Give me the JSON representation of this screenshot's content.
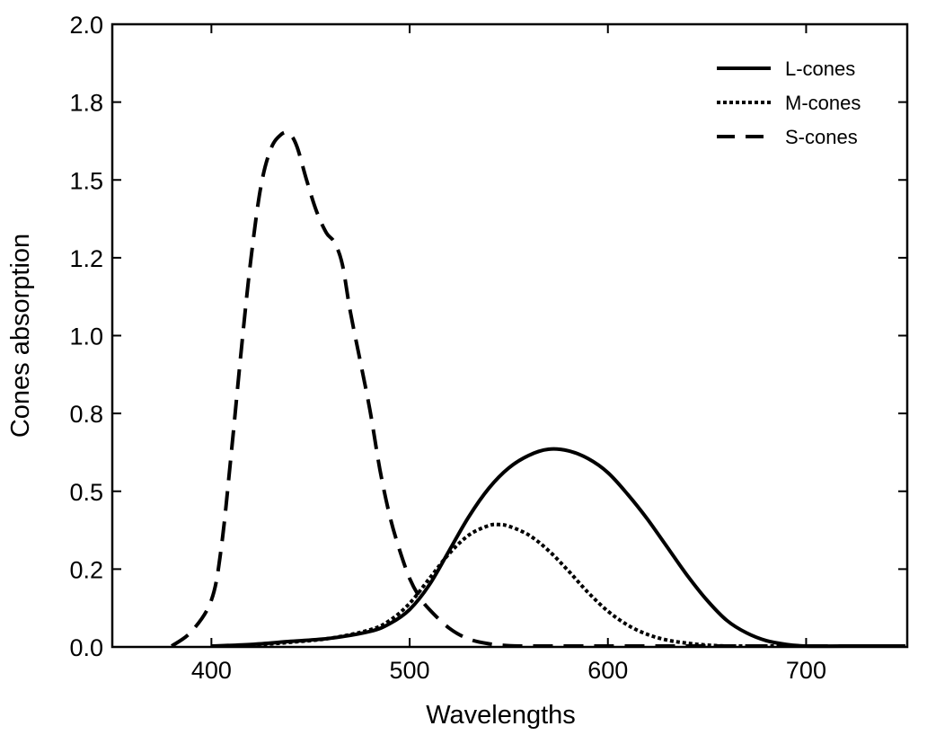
{
  "chart_data": {
    "type": "line",
    "title": "",
    "xlabel": "Wavelengths",
    "ylabel": "Cones absorption",
    "xlim": [
      350,
      751
    ],
    "ylim": [
      0,
      2.0
    ],
    "grid": false,
    "legend_position": "top-right",
    "x_ticks": [
      {
        "value": 400,
        "label": "400"
      },
      {
        "value": 500,
        "label": "500"
      },
      {
        "value": 600,
        "label": "600"
      },
      {
        "value": 700,
        "label": "700"
      }
    ],
    "y_ticks": [
      {
        "value": 0.0,
        "label": "0.0"
      },
      {
        "value": 0.25,
        "label": "0.2"
      },
      {
        "value": 0.5,
        "label": "0.5"
      },
      {
        "value": 0.75,
        "label": "0.8"
      },
      {
        "value": 1.0,
        "label": "1.0"
      },
      {
        "value": 1.25,
        "label": "1.2"
      },
      {
        "value": 1.5,
        "label": "1.5"
      },
      {
        "value": 1.75,
        "label": "1.8"
      },
      {
        "value": 2.0,
        "label": "2.0"
      }
    ],
    "series": [
      {
        "name": "L-cones",
        "style": "solid",
        "color": "#000000",
        "x": [
          400,
          420,
          440,
          460,
          480,
          490,
          500,
          510,
          520,
          530,
          540,
          550,
          560,
          570,
          580,
          590,
          600,
          610,
          620,
          630,
          640,
          650,
          660,
          670,
          680,
          690,
          700,
          720,
          750
        ],
        "y": [
          0.0,
          0.008,
          0.018,
          0.028,
          0.05,
          0.075,
          0.12,
          0.2,
          0.31,
          0.42,
          0.51,
          0.575,
          0.615,
          0.635,
          0.63,
          0.605,
          0.56,
          0.49,
          0.41,
          0.32,
          0.23,
          0.15,
          0.085,
          0.045,
          0.02,
          0.008,
          0.003,
          0.0,
          0.0
        ]
      },
      {
        "name": "M-cones",
        "style": "dotted",
        "color": "#000000",
        "x": [
          420,
          440,
          460,
          480,
          490,
          500,
          510,
          520,
          530,
          540,
          545,
          550,
          560,
          570,
          580,
          590,
          600,
          610,
          620,
          630,
          640,
          650,
          660,
          680,
          700
        ],
        "y": [
          0.005,
          0.015,
          0.028,
          0.055,
          0.085,
          0.14,
          0.22,
          0.3,
          0.36,
          0.39,
          0.393,
          0.388,
          0.36,
          0.31,
          0.245,
          0.175,
          0.115,
          0.07,
          0.04,
          0.022,
          0.012,
          0.006,
          0.003,
          0.001,
          0.0
        ]
      },
      {
        "name": "S-cones",
        "style": "dashed",
        "color": "#000000",
        "x": [
          380,
          390,
          400,
          405,
          410,
          415,
          420,
          425,
          430,
          435,
          439,
          443,
          448,
          453,
          458,
          462,
          466,
          470,
          475,
          480,
          485,
          490,
          495,
          500,
          505,
          510,
          520,
          530,
          540,
          550,
          560,
          580,
          620,
          700,
          750
        ],
        "y": [
          0.0,
          0.05,
          0.15,
          0.32,
          0.62,
          0.95,
          1.25,
          1.48,
          1.6,
          1.645,
          1.65,
          1.61,
          1.5,
          1.4,
          1.33,
          1.3,
          1.23,
          1.08,
          0.92,
          0.76,
          0.57,
          0.42,
          0.31,
          0.22,
          0.16,
          0.12,
          0.06,
          0.025,
          0.01,
          0.004,
          0.001,
          0.0,
          0.0,
          0.0,
          0.0
        ]
      }
    ]
  }
}
